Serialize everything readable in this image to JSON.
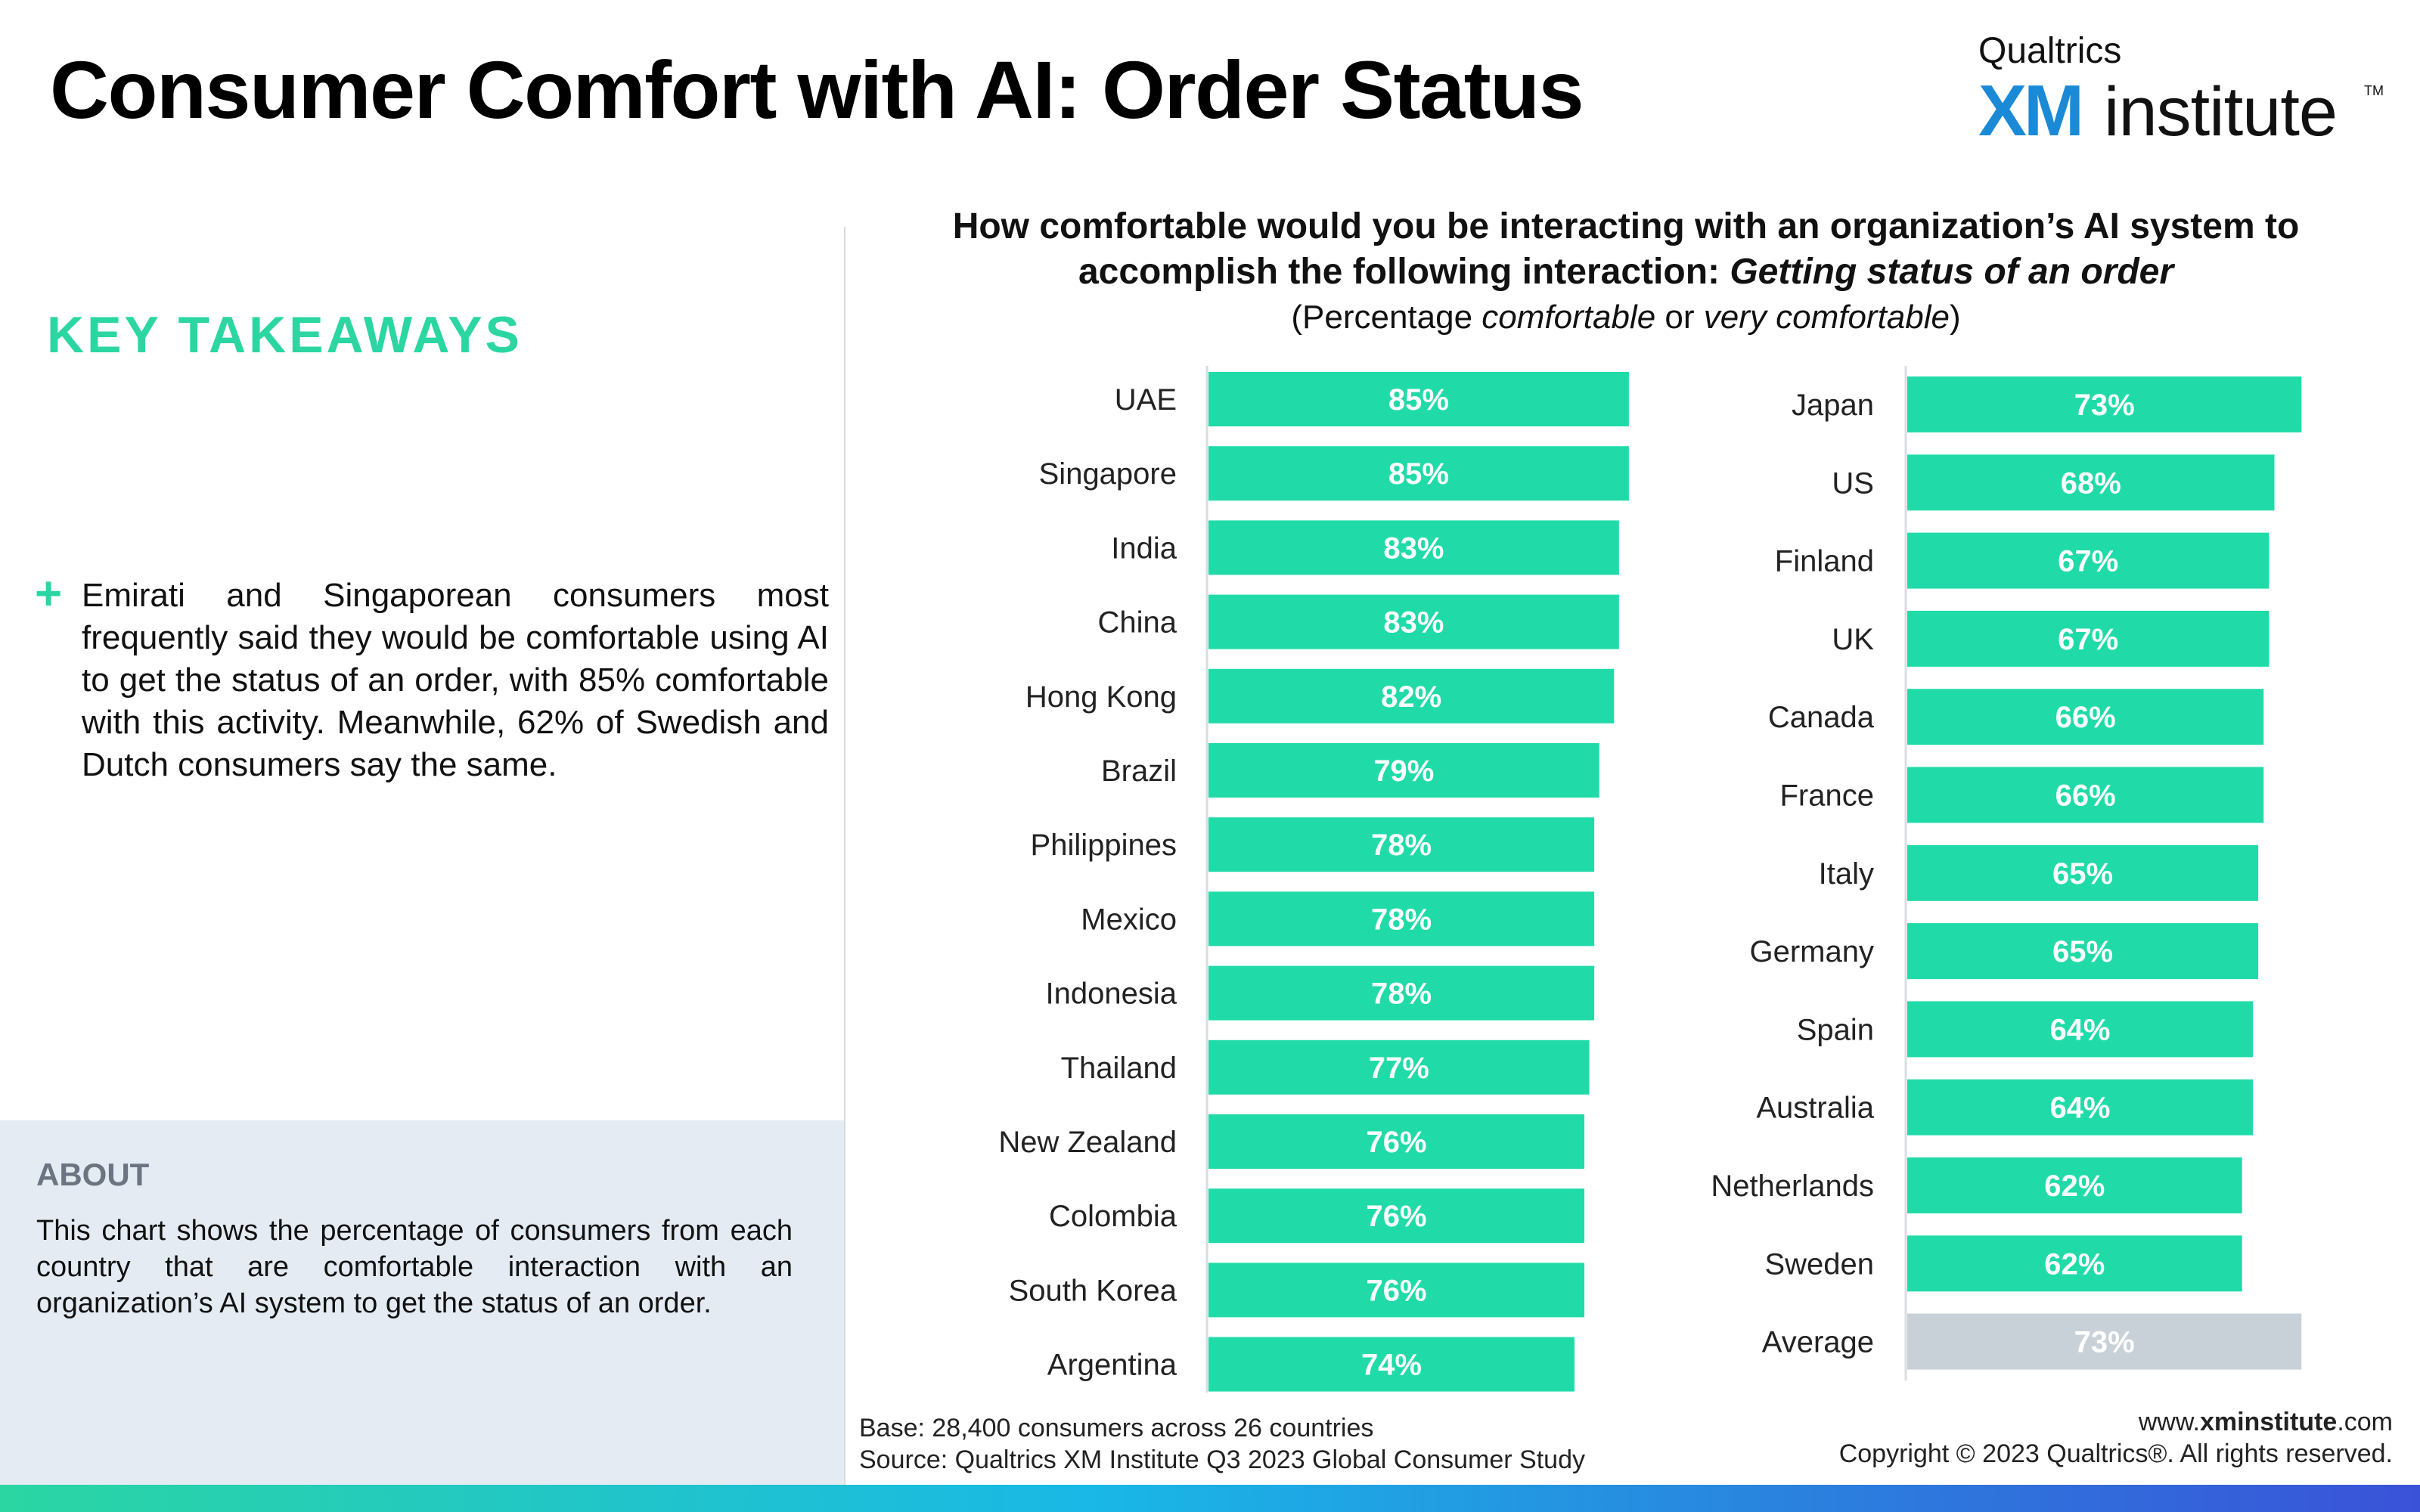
{
  "title": "Consumer Comfort with AI: Order Status",
  "logo": {
    "brand": "Qualtrics",
    "xm": "XM",
    "institute": "institute",
    "tm": "TM"
  },
  "key_takeaways": {
    "heading": "KEY TAKEAWAYS",
    "bullet_symbol": "+",
    "text": "Emirati and Singaporean consumers most frequently said they would be comfortable using AI to get the status of an order, with 85% comfortable with this activity. Meanwhile, 62% of Swedish and Dutch consumers say the same."
  },
  "about": {
    "heading": "ABOUT",
    "text": "This chart shows the percentage of consumers from each country that are comfortable interaction with an organization’s AI system to get the status of an order."
  },
  "chart_header": {
    "question_part1": "How comfortable would you be interacting with an organization’s AI system to accomplish the following interaction: ",
    "question_italic": "Getting status of an order",
    "sub_open": "(Percentage ",
    "sub_it1": "comfortable",
    "sub_or": " or ",
    "sub_it2": "very comfortable",
    "sub_close": ")"
  },
  "colors": {
    "bar": "#20dba8",
    "average_bar": "#c9d1d8",
    "accent": "#2bd6a2",
    "axis": "#d8dde2"
  },
  "chart_data": [
    {
      "type": "bar",
      "orientation": "horizontal",
      "categories": [
        "UAE",
        "Singapore",
        "India",
        "China",
        "Hong Kong",
        "Brazil",
        "Philippines",
        "Mexico",
        "Indonesia",
        "Thailand",
        "New Zealand",
        "Colombia",
        "South Korea",
        "Argentina"
      ],
      "values": [
        85,
        85,
        83,
        83,
        82,
        79,
        78,
        78,
        78,
        77,
        76,
        76,
        76,
        74
      ],
      "value_labels": [
        "85%",
        "85%",
        "83%",
        "83%",
        "82%",
        "79%",
        "78%",
        "78%",
        "78%",
        "77%",
        "76%",
        "76%",
        "76%",
        "74%"
      ]
    },
    {
      "type": "bar",
      "orientation": "horizontal",
      "categories": [
        "Japan",
        "US",
        "Finland",
        "UK",
        "Canada",
        "France",
        "Italy",
        "Germany",
        "Spain",
        "Australia",
        "Netherlands",
        "Sweden",
        "Average"
      ],
      "values": [
        73,
        68,
        67,
        67,
        66,
        66,
        65,
        65,
        64,
        64,
        62,
        62,
        73
      ],
      "value_labels": [
        "73%",
        "68%",
        "67%",
        "67%",
        "66%",
        "66%",
        "65%",
        "65%",
        "64%",
        "64%",
        "62%",
        "62%",
        "73%"
      ],
      "highlight": "Average"
    }
  ],
  "footer": {
    "base": "Base: 28,400 consumers across 26 countries",
    "source": "Source: Qualtrics XM Institute Q3 2023 Global Consumer Study",
    "web_prefix": "www.",
    "web_bold": "xminstitute",
    "web_suffix": ".com",
    "copyright": "Copyright © 2023 Qualtrics®. All rights reserved."
  }
}
